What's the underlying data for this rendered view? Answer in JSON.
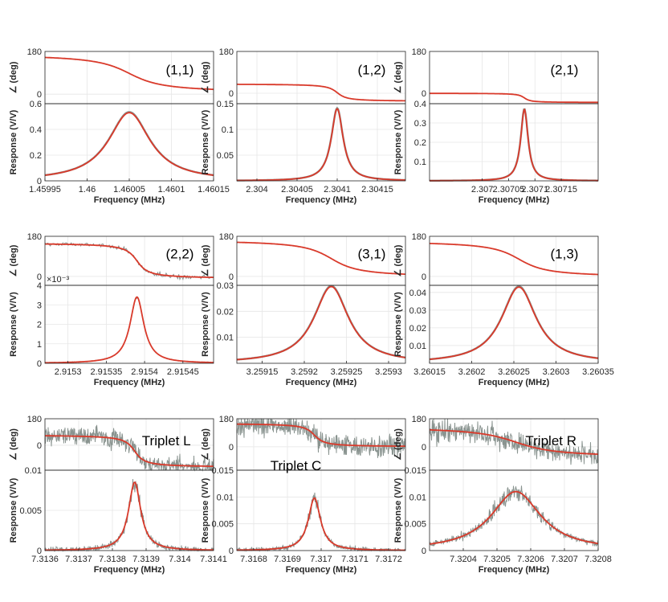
{
  "chart_data": [
    {
      "type": "line",
      "label": "(1,1)",
      "xlabel": "Frequency (MHz)",
      "phase_label": "∠ (deg)",
      "ylabel": "Response (V/V)",
      "xlim": [
        1.45995,
        1.46015
      ],
      "xticks": [
        "1.45995",
        "1.46",
        "1.46005",
        "1.4601",
        "1.46015"
      ],
      "phase": {
        "ylim": [
          -40,
          180
        ],
        "yticks": [
          "180",
          "0"
        ]
      },
      "resp": {
        "ylim": [
          0,
          0.6
        ],
        "yticks": [
          "0.6",
          "0.4",
          "0.2",
          "0"
        ],
        "exponent": ""
      },
      "fit": {
        "f0": 1.46005,
        "gamma": 3e-05,
        "peak": 0.53,
        "base": 0.0,
        "phase_hi": 170,
        "phase_lo": 5
      },
      "noise": "low"
    },
    {
      "type": "line",
      "label": "(1,2)",
      "xlabel": "Frequency (MHz)",
      "phase_label": "∠ (deg)",
      "ylabel": "Response (V/V)",
      "xlim": [
        2.303975,
        2.304185
      ],
      "xticks": [
        "2.304",
        "2.30405",
        "2.3041",
        "2.30415"
      ],
      "phase": {
        "ylim": [
          -45,
          180
        ],
        "yticks": [
          "180",
          "0"
        ]
      },
      "resp": {
        "ylim": [
          0,
          0.15
        ],
        "yticks": [
          "0.15",
          "0.1",
          "0.05"
        ],
        "exponent": ""
      },
      "fit": {
        "f0": 2.3041,
        "gamma": 9e-06,
        "peak": 0.14,
        "base": 0.0,
        "phase_hi": 40,
        "phase_lo": -35
      },
      "noise": "low"
    },
    {
      "type": "line",
      "label": "(2,1)",
      "xlabel": "Frequency (MHz)",
      "phase_label": "∠ (deg)",
      "ylabel": "Response (V/V)",
      "xlim": [
        2.3069,
        2.30722
      ],
      "xticks": [
        "2.307",
        "2.30705",
        "2.3071",
        "2.30715"
      ],
      "phase": {
        "ylim": [
          -45,
          180
        ],
        "yticks": [
          "180",
          "0"
        ]
      },
      "resp": {
        "ylim": [
          0,
          0.4
        ],
        "yticks": [
          "0.4",
          "0.3",
          "0.2",
          "0.1"
        ],
        "exponent": ""
      },
      "fit": {
        "f0": 2.30708,
        "gamma": 8.5e-06,
        "peak": 0.37,
        "base": 0.0,
        "phase_hi": 0,
        "phase_lo": -40
      },
      "noise": "low"
    },
    {
      "type": "line",
      "label": "(2,2)",
      "xlabel": "Frequency (MHz)",
      "phase_label": "∠ (deg)",
      "ylabel": "Response (V/V)",
      "xlim": [
        2.91527,
        2.91549
      ],
      "xticks": [
        "2.9153",
        "2.91535",
        "2.9154",
        "2.91545"
      ],
      "phase": {
        "ylim": [
          -40,
          180
        ],
        "yticks": [
          "180",
          "0"
        ]
      },
      "resp": {
        "ylim": [
          0,
          0.004
        ],
        "yticks": [
          "3",
          "2",
          "1",
          "0"
        ],
        "exponent": "×10⁻³",
        "top_label": "4"
      },
      "fit": {
        "f0": 2.91539,
        "gamma": 1.1e-05,
        "peak": 0.0034,
        "base": 0.0,
        "phase_hi": 150,
        "phase_lo": -10
      },
      "noise": "medium"
    },
    {
      "type": "line",
      "label": "(3,1)",
      "xlabel": "Frequency (MHz)",
      "phase_label": "∠ (deg)",
      "ylabel": "Response (V/V)",
      "xlim": [
        3.25912,
        3.25932
      ],
      "xticks": [
        "3.25915",
        "3.2592",
        "3.25925",
        "3.2593"
      ],
      "phase": {
        "ylim": [
          -40,
          180
        ],
        "yticks": [
          "180",
          "0"
        ]
      },
      "resp": {
        "ylim": [
          0,
          0.03
        ],
        "yticks": [
          "0.03",
          "0.02",
          "0.01"
        ],
        "exponent": ""
      },
      "fit": {
        "f0": 3.259232,
        "gamma": 2.5e-05,
        "peak": 0.0295,
        "base": 0.0,
        "phase_hi": 165,
        "phase_lo": -5
      },
      "noise": "low"
    },
    {
      "type": "line",
      "label": "(1,3)",
      "xlabel": "Frequency (MHz)",
      "phase_label": "∠ (deg)",
      "ylabel": "Response (V/V)",
      "xlim": [
        3.26015,
        3.26035
      ],
      "xticks": [
        "3.26015",
        "3.2602",
        "3.26025",
        "3.2603",
        "3.26035"
      ],
      "phase": {
        "ylim": [
          -40,
          180
        ],
        "yticks": [
          "180",
          "0"
        ]
      },
      "resp": {
        "ylim": [
          0,
          0.044
        ],
        "yticks": [
          "0.04",
          "0.03",
          "0.02",
          "0.01"
        ],
        "exponent": ""
      },
      "fit": {
        "f0": 3.260256,
        "gamma": 2.5e-05,
        "peak": 0.043,
        "base": 0.0,
        "phase_hi": 160,
        "phase_lo": -5
      },
      "noise": "low"
    },
    {
      "type": "line",
      "label": "Triplet L",
      "xlabel": "Frequency (MHz)",
      "phase_label": "∠ (deg)",
      "ylabel": "Response (V/V)",
      "xlim": [
        7.3136,
        7.3141
      ],
      "xticks": [
        "7.3136",
        "7.3137",
        "7.3138",
        "7.3139",
        "7.314",
        "7.3141"
      ],
      "phase": {
        "ylim": [
          -170,
          180
        ],
        "yticks": [
          "180",
          "0"
        ]
      },
      "resp": {
        "ylim": [
          0,
          0.01
        ],
        "yticks": [
          "0.01",
          "0.005",
          "0"
        ],
        "exponent": ""
      },
      "fit": {
        "f0": 7.313866,
        "gamma": 2.2e-05,
        "peak": 0.0085,
        "base": 0.0,
        "phase_hi": 70,
        "phase_lo": -150
      },
      "noise": "high"
    },
    {
      "type": "line",
      "label": "Triplet C",
      "xlabel": "Frequency (MHz)",
      "phase_label": "∠ (deg)",
      "ylabel": "Response (V/V)",
      "xlim": [
        7.31675,
        7.31725
      ],
      "xticks": [
        "7.3168",
        "7.3169",
        "7.317",
        "7.3171",
        "7.3172"
      ],
      "phase": {
        "ylim": [
          -150,
          180
        ],
        "yticks": [
          "180",
          "0"
        ]
      },
      "resp": {
        "ylim": [
          0,
          0.015
        ],
        "yticks": [
          "0.015",
          "0.01",
          "0.005",
          "0"
        ],
        "exponent": ""
      },
      "fit": {
        "f0": 7.31698,
        "gamma": 2.2e-05,
        "peak": 0.0098,
        "base": 0.0,
        "phase_hi": 150,
        "phase_lo": 0
      },
      "noise": "high"
    },
    {
      "type": "line",
      "label": "Triplet R",
      "xlabel": "Frequency (MHz)",
      "phase_label": "∠ (deg)",
      "ylabel": "Response (V/V)",
      "xlim": [
        7.3203,
        7.3208
      ],
      "xticks": [
        "7.3204",
        "7.3205",
        "7.3206",
        "7.3207",
        "7.3208"
      ],
      "phase": {
        "ylim": [
          -150,
          180
        ],
        "yticks": [
          "180",
          "0"
        ]
      },
      "resp": {
        "ylim": [
          0,
          0.015
        ],
        "yticks": [
          "0.015",
          "0.01",
          "0.005",
          "0"
        ],
        "exponent": ""
      },
      "fit": {
        "f0": 7.320556,
        "gamma": 9e-05,
        "peak": 0.011,
        "base": 0.0,
        "phase_hi": 130,
        "phase_lo": -70
      },
      "noise": "high"
    }
  ],
  "colors": {
    "fit": "#d93a2b",
    "data": "#8a9490",
    "grid": "#e6e6e6",
    "axis": "#262626"
  }
}
